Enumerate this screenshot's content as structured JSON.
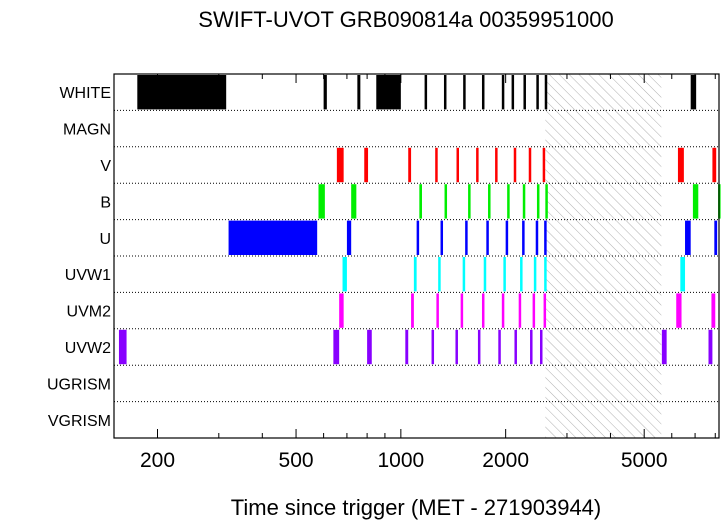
{
  "chart_data": {
    "type": "timeline",
    "title": "SWIFT-UVOT GRB090814a 00359951000",
    "xlabel": "Time since trigger (MET - 271903944)",
    "xscale": "log",
    "xlim": [
      150,
      8200
    ],
    "xticks": [
      200,
      500,
      1000,
      2000,
      5000
    ],
    "filters": [
      "WHITE",
      "MAGN",
      "V",
      "B",
      "U",
      "UVW1",
      "UVM2",
      "UVW2",
      "UGRISM",
      "VGRISM"
    ],
    "shaded_interval": [
      2600,
      5600
    ],
    "exposures": [
      {
        "filter": "WHITE",
        "color": "#000000",
        "segments": [
          [
            175,
            315
          ],
          [
            600,
            613
          ],
          [
            750,
            765
          ],
          [
            850,
            1000
          ],
          [
            1170,
            1185
          ],
          [
            1330,
            1345
          ],
          [
            1510,
            1525
          ],
          [
            1710,
            1725
          ],
          [
            1950,
            1965
          ],
          [
            2080,
            2095
          ],
          [
            2250,
            2265
          ],
          [
            2450,
            2465
          ],
          [
            2590,
            2600
          ],
          [
            6800,
            7050
          ]
        ]
      },
      {
        "filter": "MAGN",
        "color": "#000000",
        "segments": []
      },
      {
        "filter": "V",
        "color": "#ff0000",
        "segments": [
          [
            655,
            685
          ],
          [
            785,
            805
          ],
          [
            1050,
            1070
          ],
          [
            1255,
            1275
          ],
          [
            1445,
            1465
          ],
          [
            1645,
            1665
          ],
          [
            1865,
            1885
          ],
          [
            2110,
            2130
          ],
          [
            2330,
            2350
          ],
          [
            2555,
            2575
          ],
          [
            6250,
            6500
          ],
          [
            7850,
            8050
          ]
        ]
      },
      {
        "filter": "B",
        "color": "#00ee00",
        "segments": [
          [
            580,
            605
          ],
          [
            720,
            745
          ],
          [
            1130,
            1150
          ],
          [
            1335,
            1355
          ],
          [
            1560,
            1580
          ],
          [
            1780,
            1800
          ],
          [
            2020,
            2040
          ],
          [
            2240,
            2260
          ],
          [
            2460,
            2480
          ],
          [
            2600,
            2615
          ],
          [
            6900,
            7150
          ],
          [
            8150,
            8200
          ]
        ]
      },
      {
        "filter": "U",
        "color": "#0000ff",
        "segments": [
          [
            320,
            575
          ],
          [
            700,
            720
          ],
          [
            1110,
            1125
          ],
          [
            1300,
            1315
          ],
          [
            1530,
            1545
          ],
          [
            1760,
            1775
          ],
          [
            2000,
            2015
          ],
          [
            2230,
            2245
          ],
          [
            2440,
            2455
          ],
          [
            2580,
            2595
          ],
          [
            6550,
            6800
          ],
          [
            7950,
            8100
          ]
        ]
      },
      {
        "filter": "UVW1",
        "color": "#00ffff",
        "segments": [
          [
            680,
            700
          ],
          [
            1090,
            1110
          ],
          [
            1280,
            1300
          ],
          [
            1505,
            1525
          ],
          [
            1730,
            1750
          ],
          [
            1970,
            1990
          ],
          [
            2200,
            2220
          ],
          [
            2410,
            2430
          ],
          [
            2580,
            2600
          ],
          [
            6350,
            6550
          ]
        ]
      },
      {
        "filter": "UVM2",
        "color": "#ff00ff",
        "segments": [
          [
            665,
            685
          ],
          [
            1070,
            1090
          ],
          [
            1265,
            1285
          ],
          [
            1485,
            1505
          ],
          [
            1710,
            1730
          ],
          [
            1950,
            1970
          ],
          [
            2180,
            2200
          ],
          [
            2390,
            2410
          ],
          [
            2570,
            2590
          ],
          [
            6180,
            6400
          ],
          [
            7800,
            8000
          ]
        ]
      },
      {
        "filter": "UVW2",
        "color": "#8800ff",
        "segments": [
          [
            155,
            163
          ],
          [
            640,
            665
          ],
          [
            800,
            825
          ],
          [
            1030,
            1050
          ],
          [
            1225,
            1245
          ],
          [
            1435,
            1455
          ],
          [
            1665,
            1685
          ],
          [
            1905,
            1925
          ],
          [
            2120,
            2140
          ],
          [
            2350,
            2370
          ],
          [
            2510,
            2530
          ],
          [
            5620,
            5800
          ],
          [
            7650,
            7850
          ]
        ]
      },
      {
        "filter": "UGRISM",
        "color": "#000000",
        "segments": []
      },
      {
        "filter": "VGRISM",
        "color": "#000000",
        "segments": []
      }
    ]
  }
}
